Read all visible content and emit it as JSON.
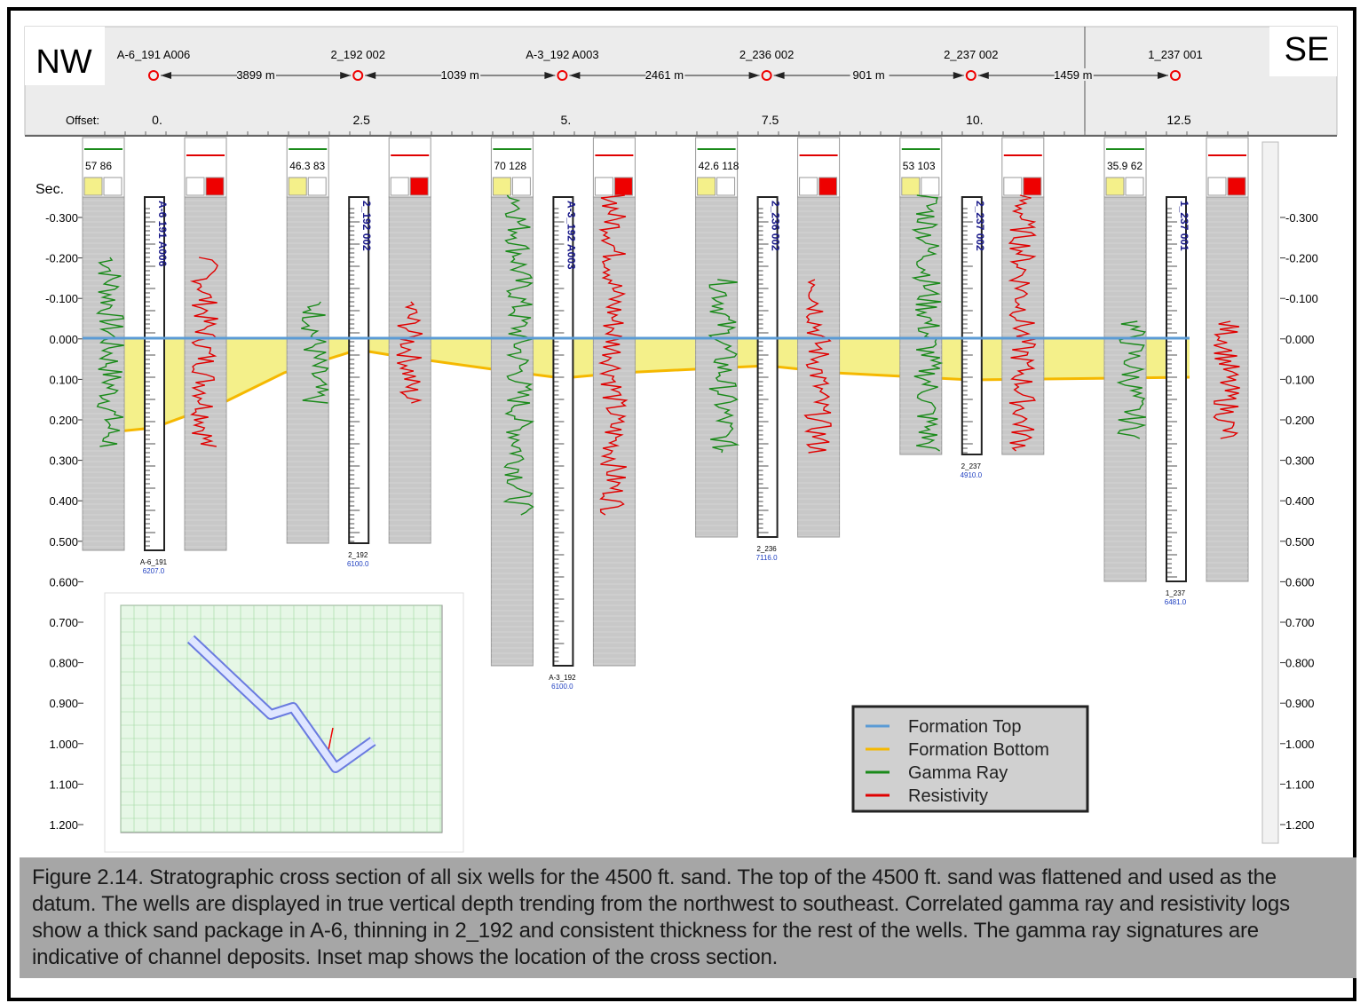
{
  "header": {
    "left_direction": "NW",
    "right_direction": "SE",
    "offset_label": "Offset:",
    "offset_ticks": [
      "0.",
      "2.5",
      "5.",
      "7.5",
      "10.",
      "12.5"
    ],
    "distances": [
      "3899 m",
      "1039 m",
      "2461 m",
      "901 m",
      "1459 m"
    ]
  },
  "wells": [
    {
      "name": "A-6_191 A006",
      "track_label": "A-6 191 A006",
      "gamma_range": "57 86",
      "td_name": "A-6_191",
      "td_value": "6207.0"
    },
    {
      "name": "2_192 002",
      "track_label": "2_192 002",
      "gamma_range": "46.3 83",
      "td_name": "2_192",
      "td_value": "6100.0"
    },
    {
      "name": "A-3_192 A003",
      "track_label": "A-3_192 A003",
      "gamma_range": "70 128",
      "td_name": "A-3_192",
      "td_value": "6100.0"
    },
    {
      "name": "2_236 002",
      "track_label": "2_236 002",
      "gamma_range": "42.6 118",
      "td_name": "2_236",
      "td_value": "7116.0"
    },
    {
      "name": "2_237 002",
      "track_label": "2_237 002",
      "gamma_range": "53 103",
      "td_name": "2_237",
      "td_value": "4910.0"
    },
    {
      "name": "1_237 001",
      "track_label": "1_237 001",
      "gamma_range": "35.9 62",
      "td_name": "1_237",
      "td_value": "6481.0"
    }
  ],
  "depth_axis": {
    "title": "Sec.",
    "labels": [
      "-0.300",
      "-0.200",
      "-0.100",
      "0.000",
      "0.100",
      "0.200",
      "0.300",
      "0.400",
      "0.500",
      "0.600",
      "0.700",
      "0.800",
      "0.900",
      "1.000",
      "1.100",
      "1.200"
    ]
  },
  "legend": [
    {
      "label": "Formation Top",
      "color": "#5b9bd5"
    },
    {
      "label": "Formation Bottom",
      "color": "#f5b800"
    },
    {
      "label": "Gamma Ray",
      "color": "#1a8a1a"
    },
    {
      "label": "Resistivity",
      "color": "#e00000"
    }
  ],
  "caption": "Figure 2.14. Stratographic cross section of all six wells for the 4500 ft. sand.  The top of the 4500 ft. sand was flattened and used as the datum.  The wells are displayed in true vertical depth trending from the northwest to southeast.  Correlated gamma ray and resistivity logs show a thick sand package in A-6, thinning in 2_192 and consistent thickness for the rest of the wells. The gamma ray signatures are indicative of channel deposits. Inset map shows the location of the cross section."
}
